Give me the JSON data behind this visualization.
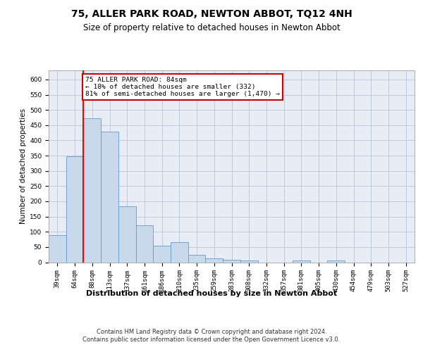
{
  "title": "75, ALLER PARK ROAD, NEWTON ABBOT, TQ12 4NH",
  "subtitle": "Size of property relative to detached houses in Newton Abbot",
  "xlabel": "Distribution of detached houses by size in Newton Abbot",
  "ylabel": "Number of detached properties",
  "categories": [
    "39sqm",
    "64sqm",
    "88sqm",
    "113sqm",
    "137sqm",
    "161sqm",
    "186sqm",
    "210sqm",
    "235sqm",
    "259sqm",
    "283sqm",
    "308sqm",
    "332sqm",
    "357sqm",
    "381sqm",
    "405sqm",
    "430sqm",
    "454sqm",
    "479sqm",
    "503sqm",
    "527sqm"
  ],
  "values": [
    88,
    348,
    472,
    430,
    183,
    122,
    55,
    65,
    25,
    12,
    8,
    5,
    0,
    0,
    5,
    0,
    5,
    0,
    0,
    0,
    0
  ],
  "bar_color": "#c9d9ec",
  "bar_edge_color": "#6699cc",
  "grid_color": "#b8c4d8",
  "bg_color": "#e8edf5",
  "red_line_x": 1.5,
  "annotation_text": "75 ALLER PARK ROAD: 84sqm\n← 18% of detached houses are smaller (332)\n81% of semi-detached houses are larger (1,470) →",
  "annotation_box_color": "#cc0000",
  "ylim": [
    0,
    630
  ],
  "yticks": [
    0,
    50,
    100,
    150,
    200,
    250,
    300,
    350,
    400,
    450,
    500,
    550,
    600
  ],
  "footer": "Contains HM Land Registry data © Crown copyright and database right 2024.\nContains public sector information licensed under the Open Government Licence v3.0.",
  "title_fontsize": 10,
  "subtitle_fontsize": 8.5,
  "axis_label_fontsize": 8,
  "tick_fontsize": 6.5,
  "footer_fontsize": 6,
  "ylabel_fontsize": 7.5
}
